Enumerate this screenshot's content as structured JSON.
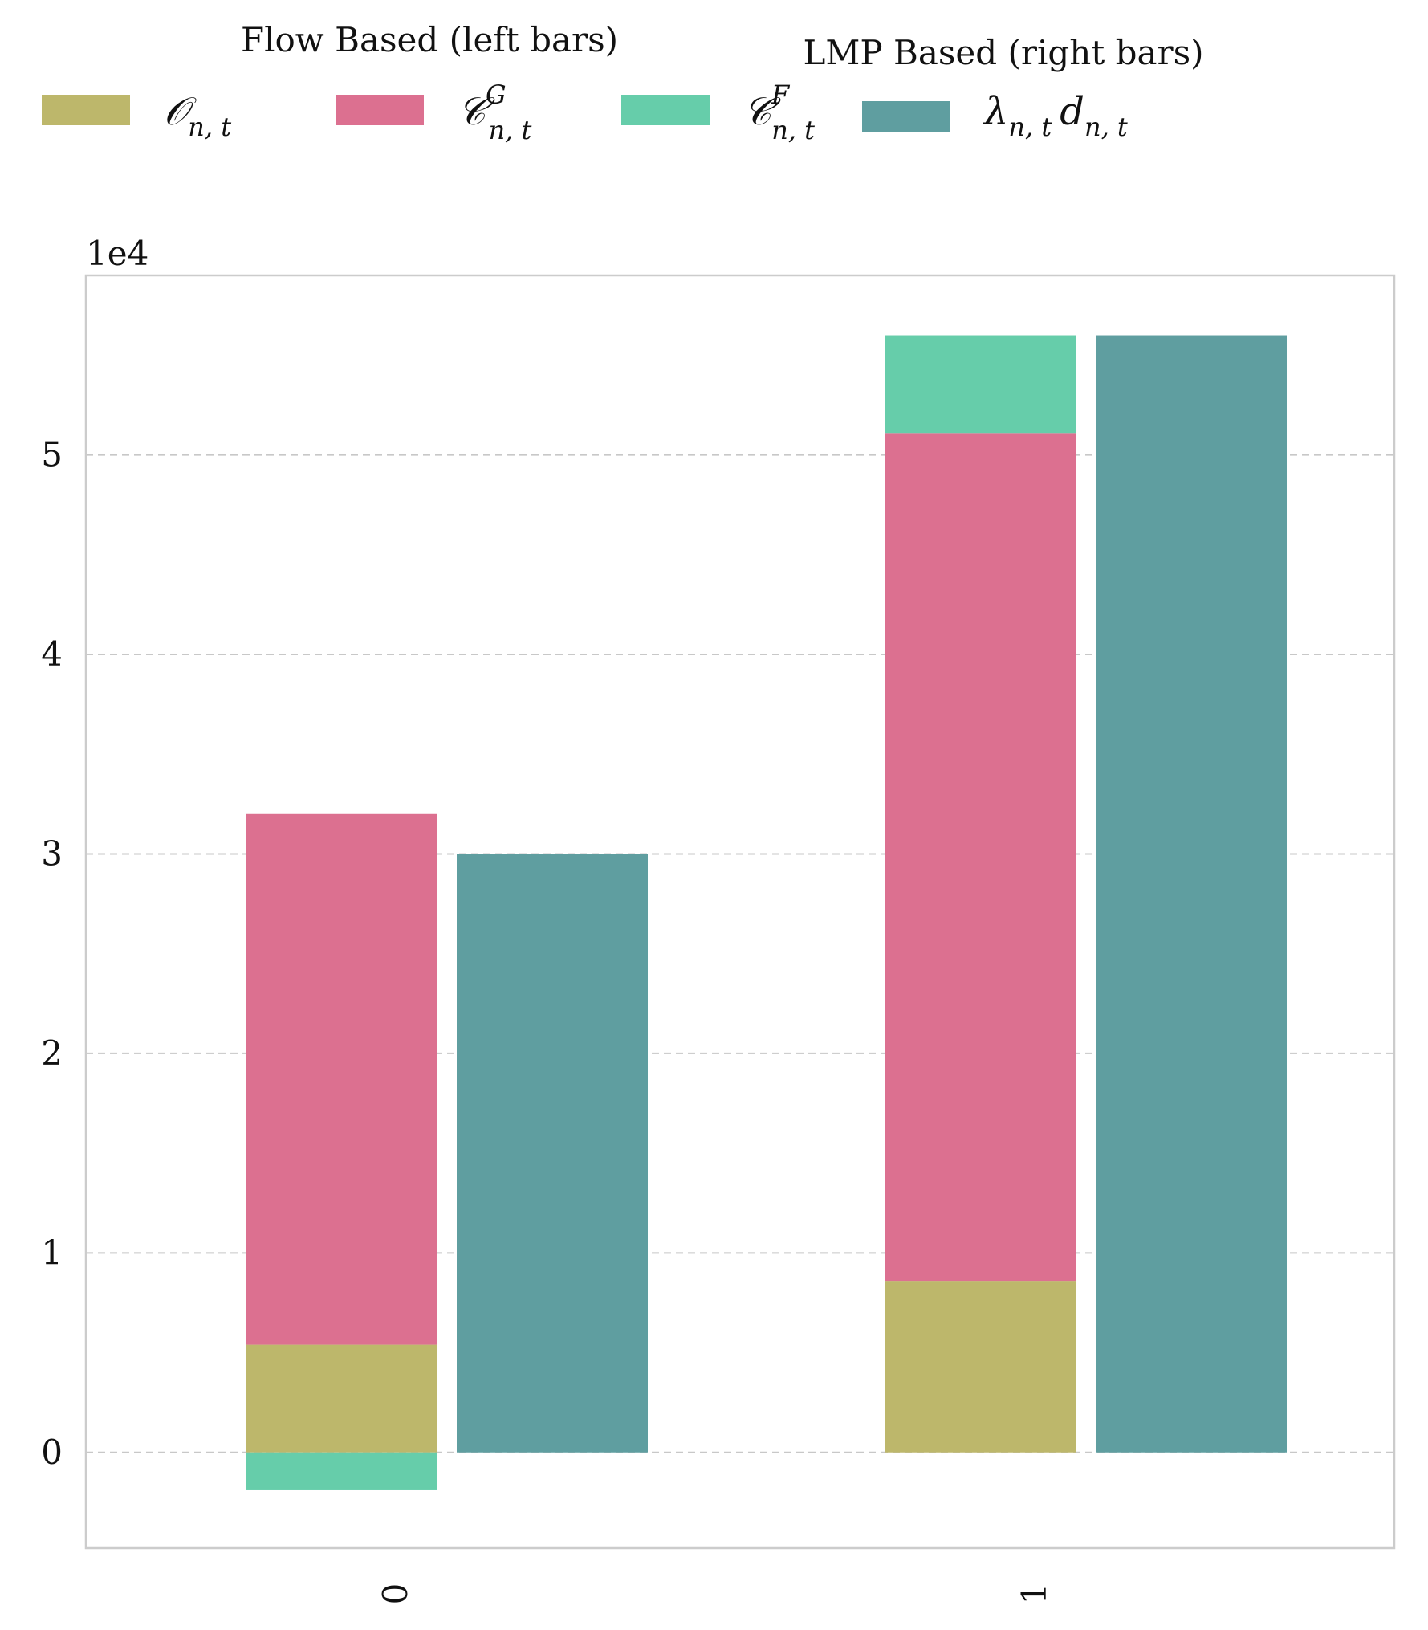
{
  "legend": {
    "group_left_title": "Flow Based (left bars)",
    "group_right_title": "LMP Based (right bars)",
    "items": [
      {
        "key": "O",
        "base": "𝒪",
        "sup": "",
        "sub": "n, t",
        "color": "#bdb76b"
      },
      {
        "key": "CG",
        "base": "𝒞",
        "sup": "G",
        "sub": "n, t",
        "color": "#dc7090"
      },
      {
        "key": "CF",
        "base": "𝒞",
        "sup": "F",
        "sub": "n, t",
        "color": "#66cdaa"
      },
      {
        "key": "LD",
        "base": "λ",
        "sup": "",
        "sub": "n, t",
        "base2": "d",
        "sub2": "n, t",
        "color": "#5f9ea0"
      }
    ]
  },
  "chart_data": {
    "type": "bar",
    "stacked": true,
    "categories": [
      "0",
      "1"
    ],
    "exponent_label": "1e4",
    "ylim": [
      -0.48,
      5.9
    ],
    "yticks": [
      0,
      1,
      2,
      3,
      4,
      5
    ],
    "grid": "y-dashed",
    "legend_position": "top",
    "left_series": [
      {
        "key": "O",
        "values": [
          0.54,
          0.86
        ],
        "color": "#bdb76b"
      },
      {
        "key": "CG",
        "values": [
          2.66,
          4.25
        ],
        "color": "#dc7090"
      },
      {
        "key": "CF",
        "values": [
          -0.19,
          0.49
        ],
        "color": "#66cdaa"
      }
    ],
    "right_series": [
      {
        "key": "LD",
        "values": [
          3.0,
          5.6
        ],
        "color": "#5f9ea0"
      }
    ]
  }
}
